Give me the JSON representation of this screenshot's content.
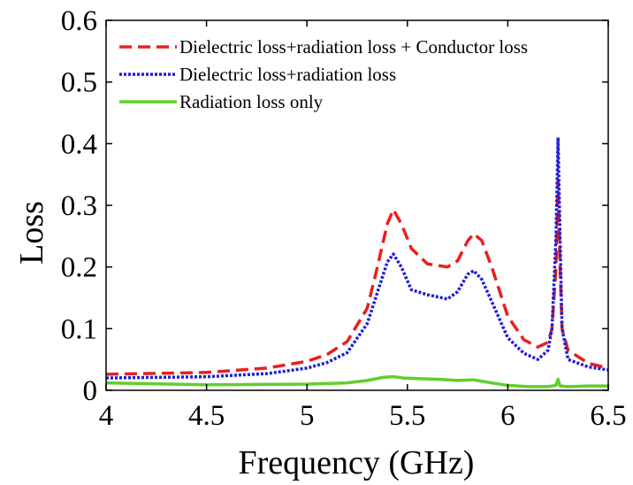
{
  "chart_data": {
    "type": "line",
    "title": "",
    "xlabel": "Frequency (GHz)",
    "ylabel": "Loss",
    "xlim": [
      4,
      6.5
    ],
    "ylim": [
      0,
      0.6
    ],
    "xticks": [
      "4",
      "4.5",
      "5",
      "5.5",
      "6",
      "6.5"
    ],
    "yticks": [
      "0",
      "0.1",
      "0.2",
      "0.3",
      "0.4",
      "0.5",
      "0.6"
    ],
    "grid": false,
    "legend_position": "top-left",
    "series": [
      {
        "name": "Dielectric loss+radiation loss + Conductor loss",
        "color": "#e8201f",
        "style": "dashed",
        "x": [
          4.0,
          4.5,
          4.8,
          5.0,
          5.1,
          5.2,
          5.3,
          5.35,
          5.4,
          5.43,
          5.47,
          5.52,
          5.6,
          5.7,
          5.75,
          5.8,
          5.83,
          5.87,
          5.92,
          6.0,
          6.08,
          6.15,
          6.2,
          6.22,
          6.24,
          6.25,
          6.26,
          6.27,
          6.3,
          6.4,
          6.5
        ],
        "values": [
          0.026,
          0.029,
          0.036,
          0.047,
          0.058,
          0.079,
          0.133,
          0.199,
          0.27,
          0.293,
          0.27,
          0.23,
          0.205,
          0.2,
          0.21,
          0.242,
          0.254,
          0.243,
          0.2,
          0.12,
          0.082,
          0.07,
          0.078,
          0.1,
          0.2,
          0.34,
          0.2,
          0.1,
          0.065,
          0.044,
          0.036
        ]
      },
      {
        "name": "Dielectric loss+radiation loss",
        "color": "#1f1fd6",
        "style": "dotted",
        "x": [
          4.0,
          4.5,
          4.8,
          5.0,
          5.1,
          5.2,
          5.3,
          5.35,
          5.4,
          5.43,
          5.47,
          5.52,
          5.6,
          5.7,
          5.75,
          5.8,
          5.83,
          5.87,
          5.92,
          6.0,
          6.08,
          6.15,
          6.2,
          6.22,
          6.24,
          6.25,
          6.26,
          6.27,
          6.3,
          6.4,
          6.5
        ],
        "values": [
          0.02,
          0.022,
          0.027,
          0.036,
          0.045,
          0.061,
          0.108,
          0.158,
          0.208,
          0.221,
          0.2,
          0.163,
          0.155,
          0.148,
          0.16,
          0.188,
          0.194,
          0.18,
          0.144,
          0.085,
          0.06,
          0.05,
          0.065,
          0.1,
          0.25,
          0.41,
          0.25,
          0.1,
          0.05,
          0.038,
          0.033
        ]
      },
      {
        "name": "Radiation loss only",
        "color": "#5fcf2a",
        "style": "solid",
        "x": [
          4.0,
          4.5,
          5.0,
          5.2,
          5.3,
          5.38,
          5.43,
          5.48,
          5.55,
          5.65,
          5.75,
          5.83,
          5.9,
          6.0,
          6.1,
          6.2,
          6.24,
          6.25,
          6.26,
          6.3,
          6.4,
          6.5
        ],
        "values": [
          0.012,
          0.009,
          0.01,
          0.012,
          0.016,
          0.021,
          0.022,
          0.02,
          0.019,
          0.018,
          0.016,
          0.017,
          0.013,
          0.008,
          0.006,
          0.006,
          0.008,
          0.018,
          0.007,
          0.006,
          0.007,
          0.007
        ]
      }
    ]
  }
}
